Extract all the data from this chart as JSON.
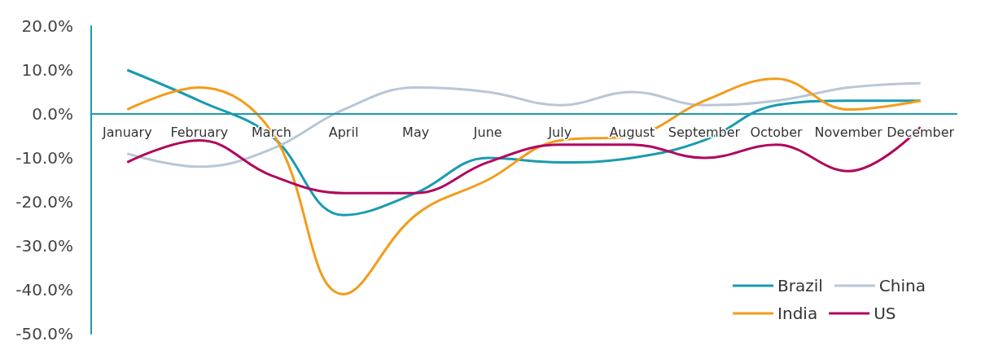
{
  "chart_data": {
    "type": "line",
    "categories": [
      "January",
      "February",
      "March",
      "April",
      "May",
      "June",
      "July",
      "August",
      "September",
      "October",
      "November",
      "December"
    ],
    "series": [
      {
        "name": "Brazil",
        "color": "#1a9bb0",
        "values": [
          10,
          3,
          -5,
          -23,
          -18,
          -10,
          -11,
          -10,
          -6,
          2,
          3,
          3
        ]
      },
      {
        "name": "China",
        "color": "#b8c7d6",
        "values": [
          -9,
          -12,
          -8,
          1,
          6,
          5,
          2,
          5,
          2,
          3,
          6,
          7
        ]
      },
      {
        "name": "India",
        "color": "#f39c1a",
        "values": [
          1,
          6,
          -4,
          -41,
          -23,
          -15,
          -6,
          -5,
          3,
          8,
          1,
          3
        ]
      },
      {
        "name": "US",
        "color": "#b0075e",
        "values": [
          -11,
          -6,
          -14,
          -18,
          -18,
          -11,
          -7,
          -7,
          -10,
          -7,
          -13,
          -3
        ]
      }
    ],
    "ylim": [
      -50,
      20
    ],
    "yticks": [
      {
        "value": -50,
        "label": "-50.0%"
      },
      {
        "value": -40,
        "label": "-40.0%"
      },
      {
        "value": -30,
        "label": "-30.0%"
      },
      {
        "value": -20,
        "label": "-20.0%"
      },
      {
        "value": -10,
        "label": "-10.0%"
      },
      {
        "value": 0,
        "label": "0.0%"
      },
      {
        "value": 10,
        "label": "10.0%"
      },
      {
        "value": 20,
        "label": "20.0%"
      }
    ],
    "grid": false,
    "legend": "bottom right",
    "marker": "none",
    "line_style": "solid"
  }
}
